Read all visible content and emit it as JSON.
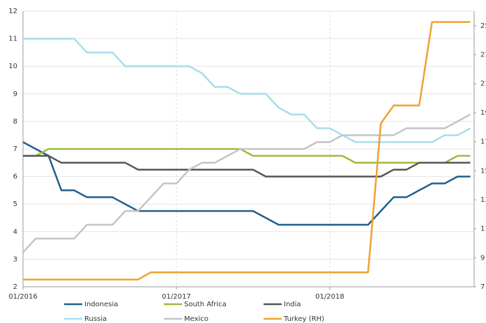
{
  "chart_data": {
    "type": "line",
    "x": [
      "01/2016",
      "02/2016",
      "03/2016",
      "04/2016",
      "05/2016",
      "06/2016",
      "07/2016",
      "08/2016",
      "09/2016",
      "10/2016",
      "11/2016",
      "12/2016",
      "01/2017",
      "02/2017",
      "03/2017",
      "04/2017",
      "05/2017",
      "06/2017",
      "07/2017",
      "08/2017",
      "09/2017",
      "10/2017",
      "11/2017",
      "12/2017",
      "01/2018",
      "02/2018",
      "03/2018",
      "04/2018",
      "05/2018",
      "06/2018",
      "07/2018",
      "08/2018",
      "09/2018",
      "10/2018",
      "11/2018",
      "12/2018"
    ],
    "xticks": [
      "01/2016",
      "01/2017",
      "01/2018"
    ],
    "ylim": [
      2,
      12
    ],
    "yticks": [
      2,
      3,
      4,
      5,
      6,
      7,
      8,
      9,
      10,
      11,
      12
    ],
    "y2lim": [
      7,
      26
    ],
    "y2ticks": [
      7,
      9,
      11,
      13,
      15,
      17,
      19,
      21,
      23,
      25
    ],
    "grid": true,
    "series": [
      {
        "name": "Indonesia",
        "color": "#1f5f8b",
        "values": [
          7.25,
          7.0,
          6.75,
          5.5,
          5.5,
          5.25,
          5.25,
          5.25,
          5.0,
          4.75,
          4.75,
          4.75,
          4.75,
          4.75,
          4.75,
          4.75,
          4.75,
          4.75,
          4.75,
          4.5,
          4.25,
          4.25,
          4.25,
          4.25,
          4.25,
          4.25,
          4.25,
          4.25,
          4.75,
          5.25,
          5.25,
          5.5,
          5.75,
          5.75,
          6.0,
          6.0
        ]
      },
      {
        "name": "South Africa",
        "color": "#9bbb3b",
        "values": [
          6.75,
          6.75,
          7.0,
          7.0,
          7.0,
          7.0,
          7.0,
          7.0,
          7.0,
          7.0,
          7.0,
          7.0,
          7.0,
          7.0,
          7.0,
          7.0,
          7.0,
          7.0,
          6.75,
          6.75,
          6.75,
          6.75,
          6.75,
          6.75,
          6.75,
          6.75,
          6.5,
          6.5,
          6.5,
          6.5,
          6.5,
          6.5,
          6.5,
          6.5,
          6.75,
          6.75
        ]
      },
      {
        "name": "India",
        "color": "#555555",
        "values": [
          6.75,
          6.75,
          6.75,
          6.5,
          6.5,
          6.5,
          6.5,
          6.5,
          6.5,
          6.25,
          6.25,
          6.25,
          6.25,
          6.25,
          6.25,
          6.25,
          6.25,
          6.25,
          6.25,
          6.0,
          6.0,
          6.0,
          6.0,
          6.0,
          6.0,
          6.0,
          6.0,
          6.0,
          6.0,
          6.25,
          6.25,
          6.5,
          6.5,
          6.5,
          6.5,
          6.5
        ]
      },
      {
        "name": "Russia",
        "color": "#a8dcec",
        "values": [
          11.0,
          11.0,
          11.0,
          11.0,
          11.0,
          10.5,
          10.5,
          10.5,
          10.0,
          10.0,
          10.0,
          10.0,
          10.0,
          10.0,
          9.75,
          9.25,
          9.25,
          9.0,
          9.0,
          9.0,
          8.5,
          8.25,
          8.25,
          7.75,
          7.75,
          7.5,
          7.25,
          7.25,
          7.25,
          7.25,
          7.25,
          7.25,
          7.25,
          7.5,
          7.5,
          7.75
        ]
      },
      {
        "name": "Mexico",
        "color": "#c4c4c4",
        "values": [
          3.25,
          3.75,
          3.75,
          3.75,
          3.75,
          4.25,
          4.25,
          4.25,
          4.75,
          4.75,
          5.25,
          5.75,
          5.75,
          6.25,
          6.5,
          6.5,
          6.75,
          7.0,
          7.0,
          7.0,
          7.0,
          7.0,
          7.0,
          7.25,
          7.25,
          7.5,
          7.5,
          7.5,
          7.5,
          7.5,
          7.75,
          7.75,
          7.75,
          7.75,
          8.0,
          8.25
        ]
      },
      {
        "name": "Turkey (RH)",
        "color": "#f0a030",
        "axis": "y2",
        "values": [
          7.5,
          7.5,
          7.5,
          7.5,
          7.5,
          7.5,
          7.5,
          7.5,
          7.5,
          7.5,
          8.0,
          8.0,
          8.0,
          8.0,
          8.0,
          8.0,
          8.0,
          8.0,
          8.0,
          8.0,
          8.0,
          8.0,
          8.0,
          8.0,
          8.0,
          8.0,
          8.0,
          8.0,
          18.25,
          19.5,
          19.5,
          19.5,
          25.25,
          25.25,
          25.25,
          25.25
        ]
      }
    ]
  }
}
